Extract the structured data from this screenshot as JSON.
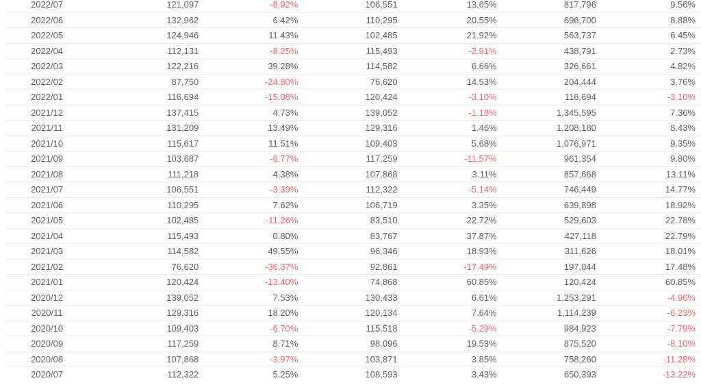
{
  "colors": {
    "text": "#606060",
    "negative": "#f5606a",
    "row_border": "#ececec",
    "background": "#ffffff"
  },
  "table": {
    "header_visible": false,
    "negative_values_shown_in_red": true,
    "row_count_visible": 25
  },
  "chart_data": {
    "type": "table",
    "columns": [
      "month",
      "value_1",
      "pct_change_1",
      "value_2",
      "pct_change_2",
      "value_3",
      "pct_change_3"
    ],
    "rows": [
      [
        "2022/07",
        "121,097",
        "-8.92%",
        "106,551",
        "13.65%",
        "817,796",
        "9.56%"
      ],
      [
        "2022/06",
        "132,962",
        "6.42%",
        "110,295",
        "20.55%",
        "696,700",
        "8.88%"
      ],
      [
        "2022/05",
        "124,946",
        "11.43%",
        "102,485",
        "21.92%",
        "563,737",
        "6.45%"
      ],
      [
        "2022/04",
        "112,131",
        "-8.25%",
        "115,493",
        "-2.91%",
        "438,791",
        "2.73%"
      ],
      [
        "2022/03",
        "122,216",
        "39.28%",
        "114,582",
        "6.66%",
        "326,661",
        "4.82%"
      ],
      [
        "2022/02",
        "87,750",
        "-24.80%",
        "76,620",
        "14.53%",
        "204,444",
        "3.76%"
      ],
      [
        "2022/01",
        "116,694",
        "-15.08%",
        "120,424",
        "-3.10%",
        "116,694",
        "-3.10%"
      ],
      [
        "2021/12",
        "137,415",
        "4.73%",
        "139,052",
        "-1.18%",
        "1,345,595",
        "7.36%"
      ],
      [
        "2021/11",
        "131,209",
        "13.49%",
        "129,316",
        "1.46%",
        "1,208,180",
        "8.43%"
      ],
      [
        "2021/10",
        "115,617",
        "11.51%",
        "109,403",
        "5.68%",
        "1,076,971",
        "9.35%"
      ],
      [
        "2021/09",
        "103,687",
        "-6.77%",
        "117,259",
        "-11.57%",
        "961,354",
        "9.80%"
      ],
      [
        "2021/08",
        "111,218",
        "4.38%",
        "107,868",
        "3.11%",
        "857,668",
        "13.11%"
      ],
      [
        "2021/07",
        "106,551",
        "-3.39%",
        "112,322",
        "-5.14%",
        "746,449",
        "14.77%"
      ],
      [
        "2021/06",
        "110,295",
        "7.62%",
        "106,719",
        "3.35%",
        "639,898",
        "18.92%"
      ],
      [
        "2021/05",
        "102,485",
        "-11.26%",
        "83,510",
        "22.72%",
        "529,603",
        "22.78%"
      ],
      [
        "2021/04",
        "115,493",
        "0.80%",
        "83,767",
        "37.87%",
        "427,118",
        "22.79%"
      ],
      [
        "2021/03",
        "114,582",
        "49.55%",
        "96,346",
        "18.93%",
        "311,626",
        "18.01%"
      ],
      [
        "2021/02",
        "76,620",
        "-36.37%",
        "92,861",
        "-17.49%",
        "197,044",
        "17.48%"
      ],
      [
        "2021/01",
        "120,424",
        "-13.40%",
        "74,868",
        "60.85%",
        "120,424",
        "60.85%"
      ],
      [
        "2020/12",
        "139,052",
        "7.53%",
        "130,433",
        "6.61%",
        "1,253,291",
        "-4.96%"
      ],
      [
        "2020/11",
        "129,316",
        "18.20%",
        "120,134",
        "7.64%",
        "1,114,239",
        "-6.23%"
      ],
      [
        "2020/10",
        "109,403",
        "-6.70%",
        "115,518",
        "-5.29%",
        "984,923",
        "-7.79%"
      ],
      [
        "2020/09",
        "117,259",
        "8.71%",
        "98,096",
        "19.53%",
        "875,520",
        "-8.10%"
      ],
      [
        "2020/08",
        "107,868",
        "-3.97%",
        "103,871",
        "3.85%",
        "758,260",
        "-11.28%"
      ],
      [
        "2020/07",
        "112,322",
        "5.25%",
        "108,593",
        "3.43%",
        "650,393",
        "-13.22%"
      ]
    ]
  }
}
